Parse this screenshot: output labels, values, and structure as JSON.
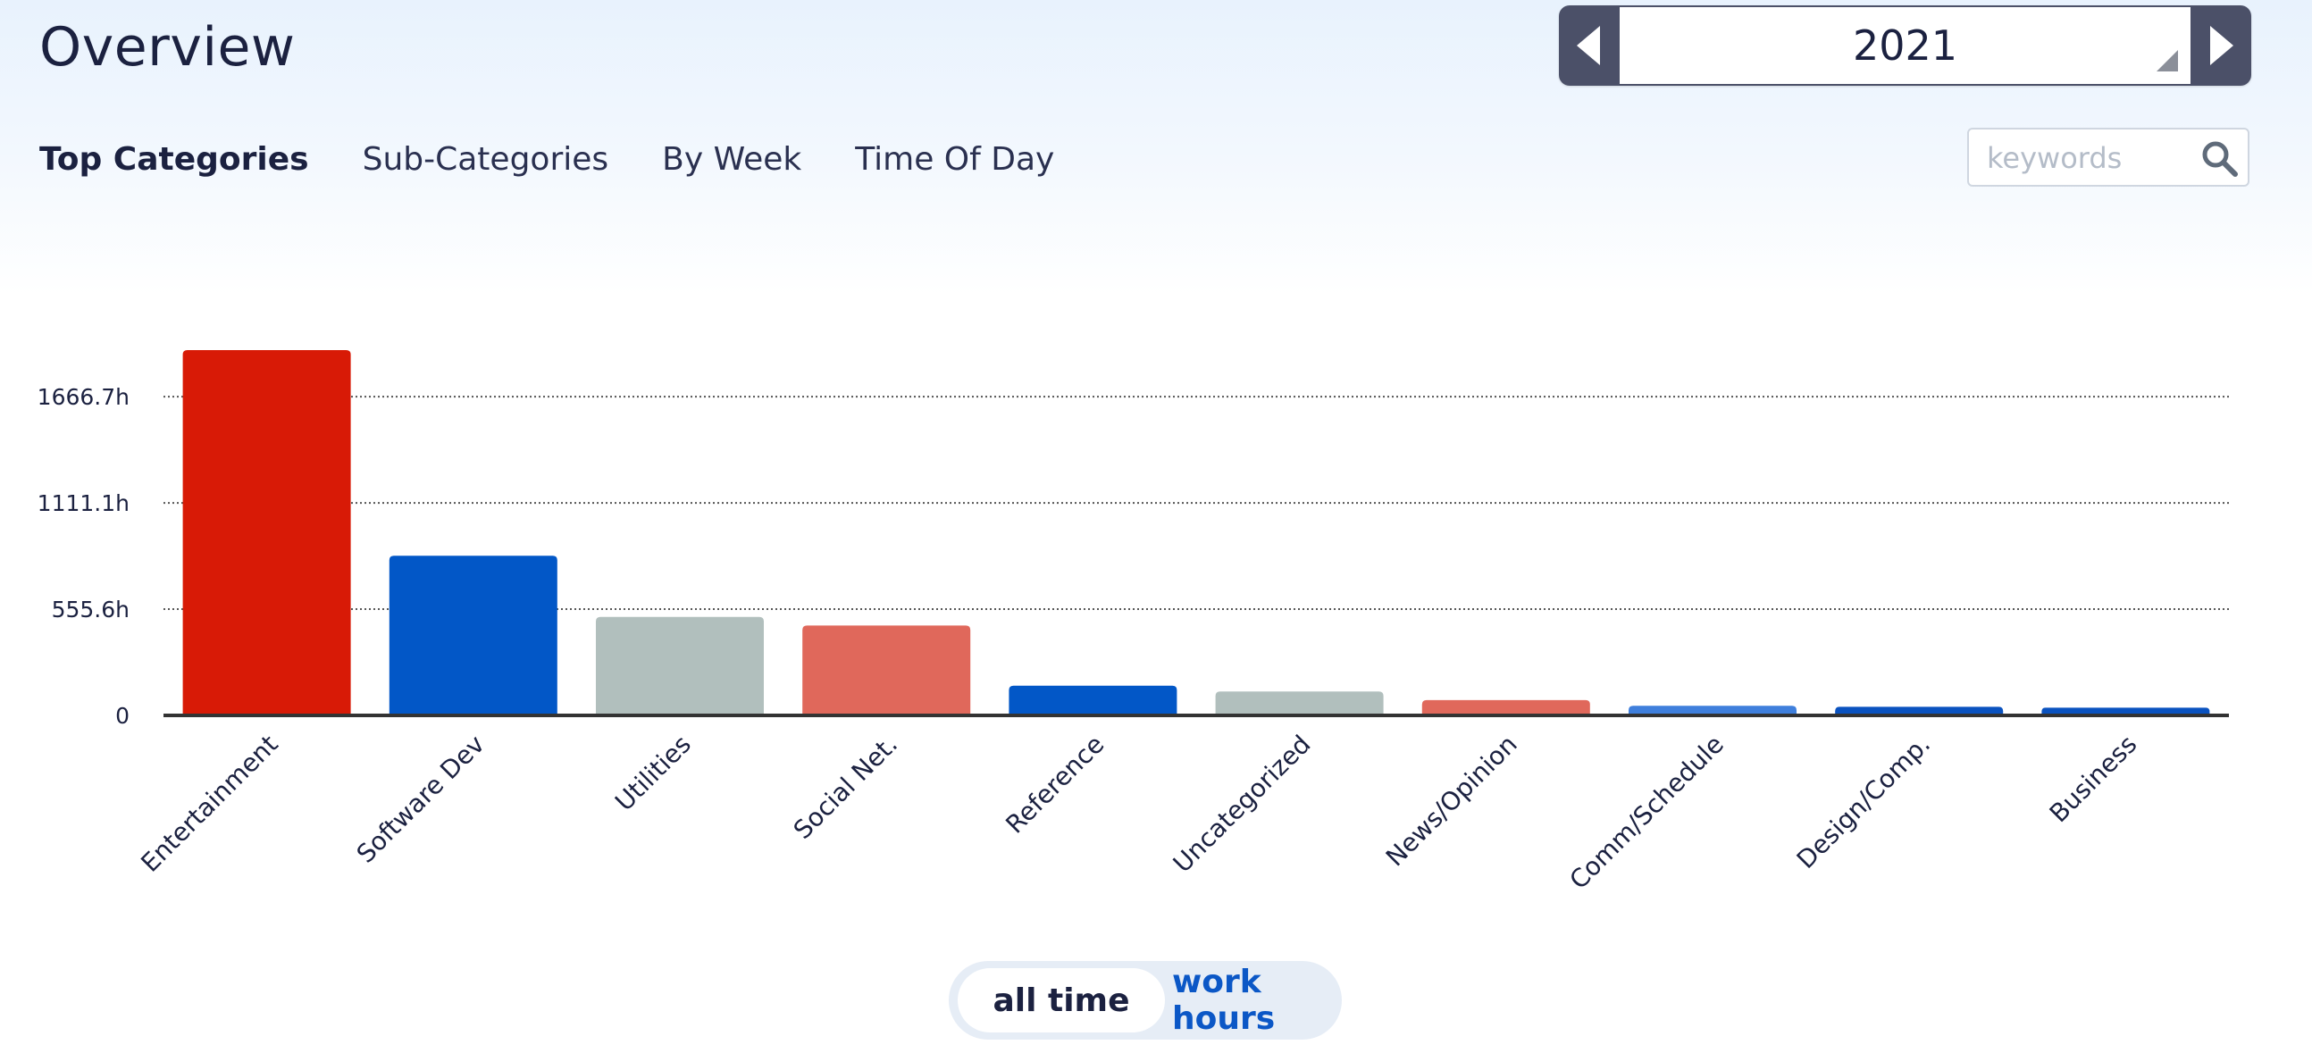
{
  "header": {
    "title": "Overview"
  },
  "year_selector": {
    "value": "2021",
    "prev_icon": "triangle-left-icon",
    "next_icon": "triangle-right-icon"
  },
  "tabs": [
    {
      "label": "Top Categories",
      "active": true
    },
    {
      "label": "Sub-Categories",
      "active": false
    },
    {
      "label": "By Week",
      "active": false
    },
    {
      "label": "Time Of Day",
      "active": false
    }
  ],
  "search": {
    "placeholder": "keywords",
    "value": "",
    "icon": "magnifier-icon"
  },
  "chart_data": {
    "type": "bar",
    "categories": [
      "Entertainment",
      "Software Dev",
      "Utilities",
      "Social Net.",
      "Reference",
      "Uncategorized",
      "News/Opinion",
      "Comm/Schedule",
      "Design/Comp.",
      "Business"
    ],
    "values": [
      1910,
      835,
      515,
      470,
      155,
      125,
      80,
      50,
      45,
      40
    ],
    "colors": [
      "#d81a06",
      "#0257c7",
      "#b1bfbd",
      "#e0685b",
      "#0257c7",
      "#b1bfbd",
      "#e0685b",
      "#3f7fdc",
      "#0a52bf",
      "#0a52bf"
    ],
    "yticks": [
      0,
      555.6,
      1111.1,
      1666.7
    ],
    "ytick_labels": [
      "0",
      "555.6h",
      "1111.1h",
      "1666.7h"
    ],
    "ylim": [
      0,
      2083
    ],
    "grid": true,
    "title": "",
    "xlabel": "",
    "ylabel": ""
  },
  "toggle": {
    "options": [
      "all time",
      "work hours"
    ],
    "selected": "all time"
  }
}
